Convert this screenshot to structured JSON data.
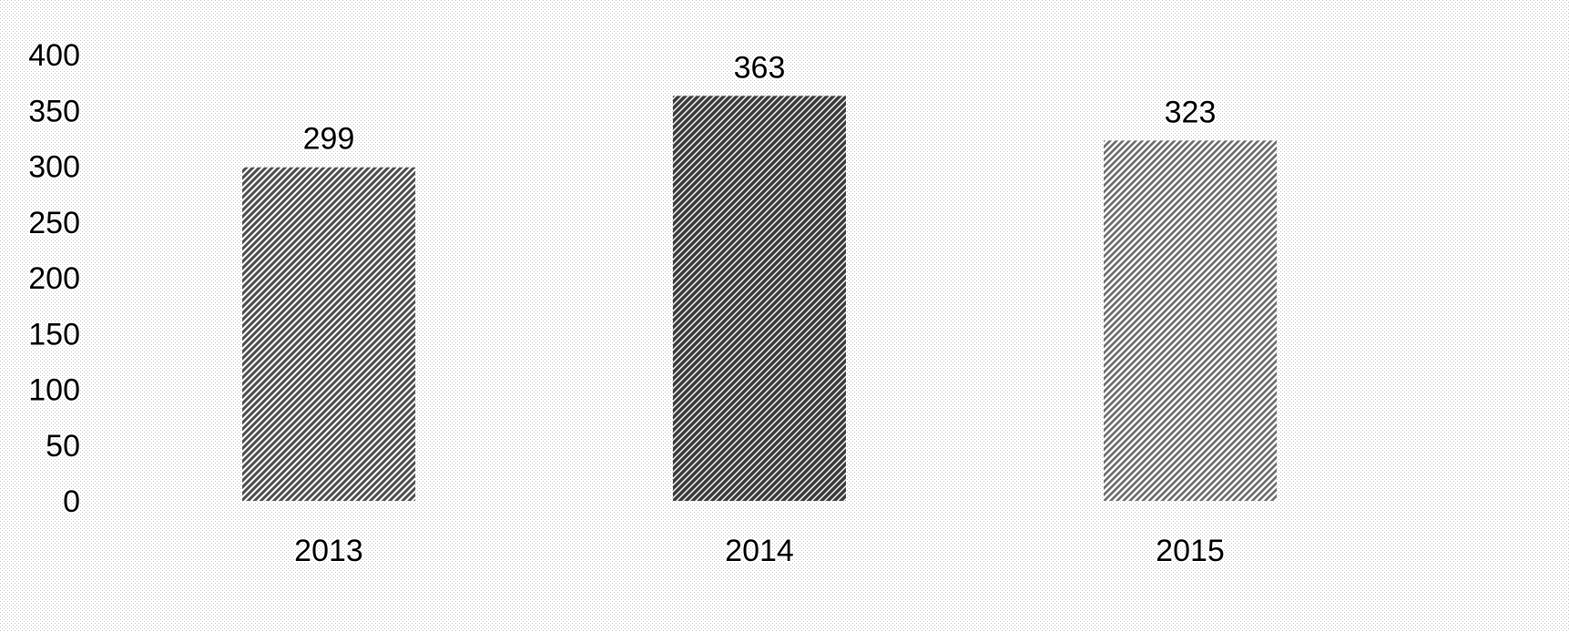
{
  "title": "",
  "chart_data": {
    "type": "bar",
    "title": "",
    "xlabel": "",
    "ylabel": "",
    "categories": [
      "2013",
      "2014",
      "2015"
    ],
    "values": [
      299,
      363,
      323
    ],
    "ylim": [
      0,
      400
    ],
    "yticks": [
      0,
      50,
      100,
      150,
      200,
      250,
      300,
      350,
      400
    ],
    "data_labels": true,
    "grid": false,
    "legend": "none",
    "colors": {
      "background_pattern_fg": "#bfbfbf",
      "background_pattern_bg": "#ffffff",
      "bar_2013": "#4d4d4d",
      "bar_2014": "#3a3a3a",
      "bar_2015": "#6a6a6a",
      "text": "#000000"
    }
  }
}
